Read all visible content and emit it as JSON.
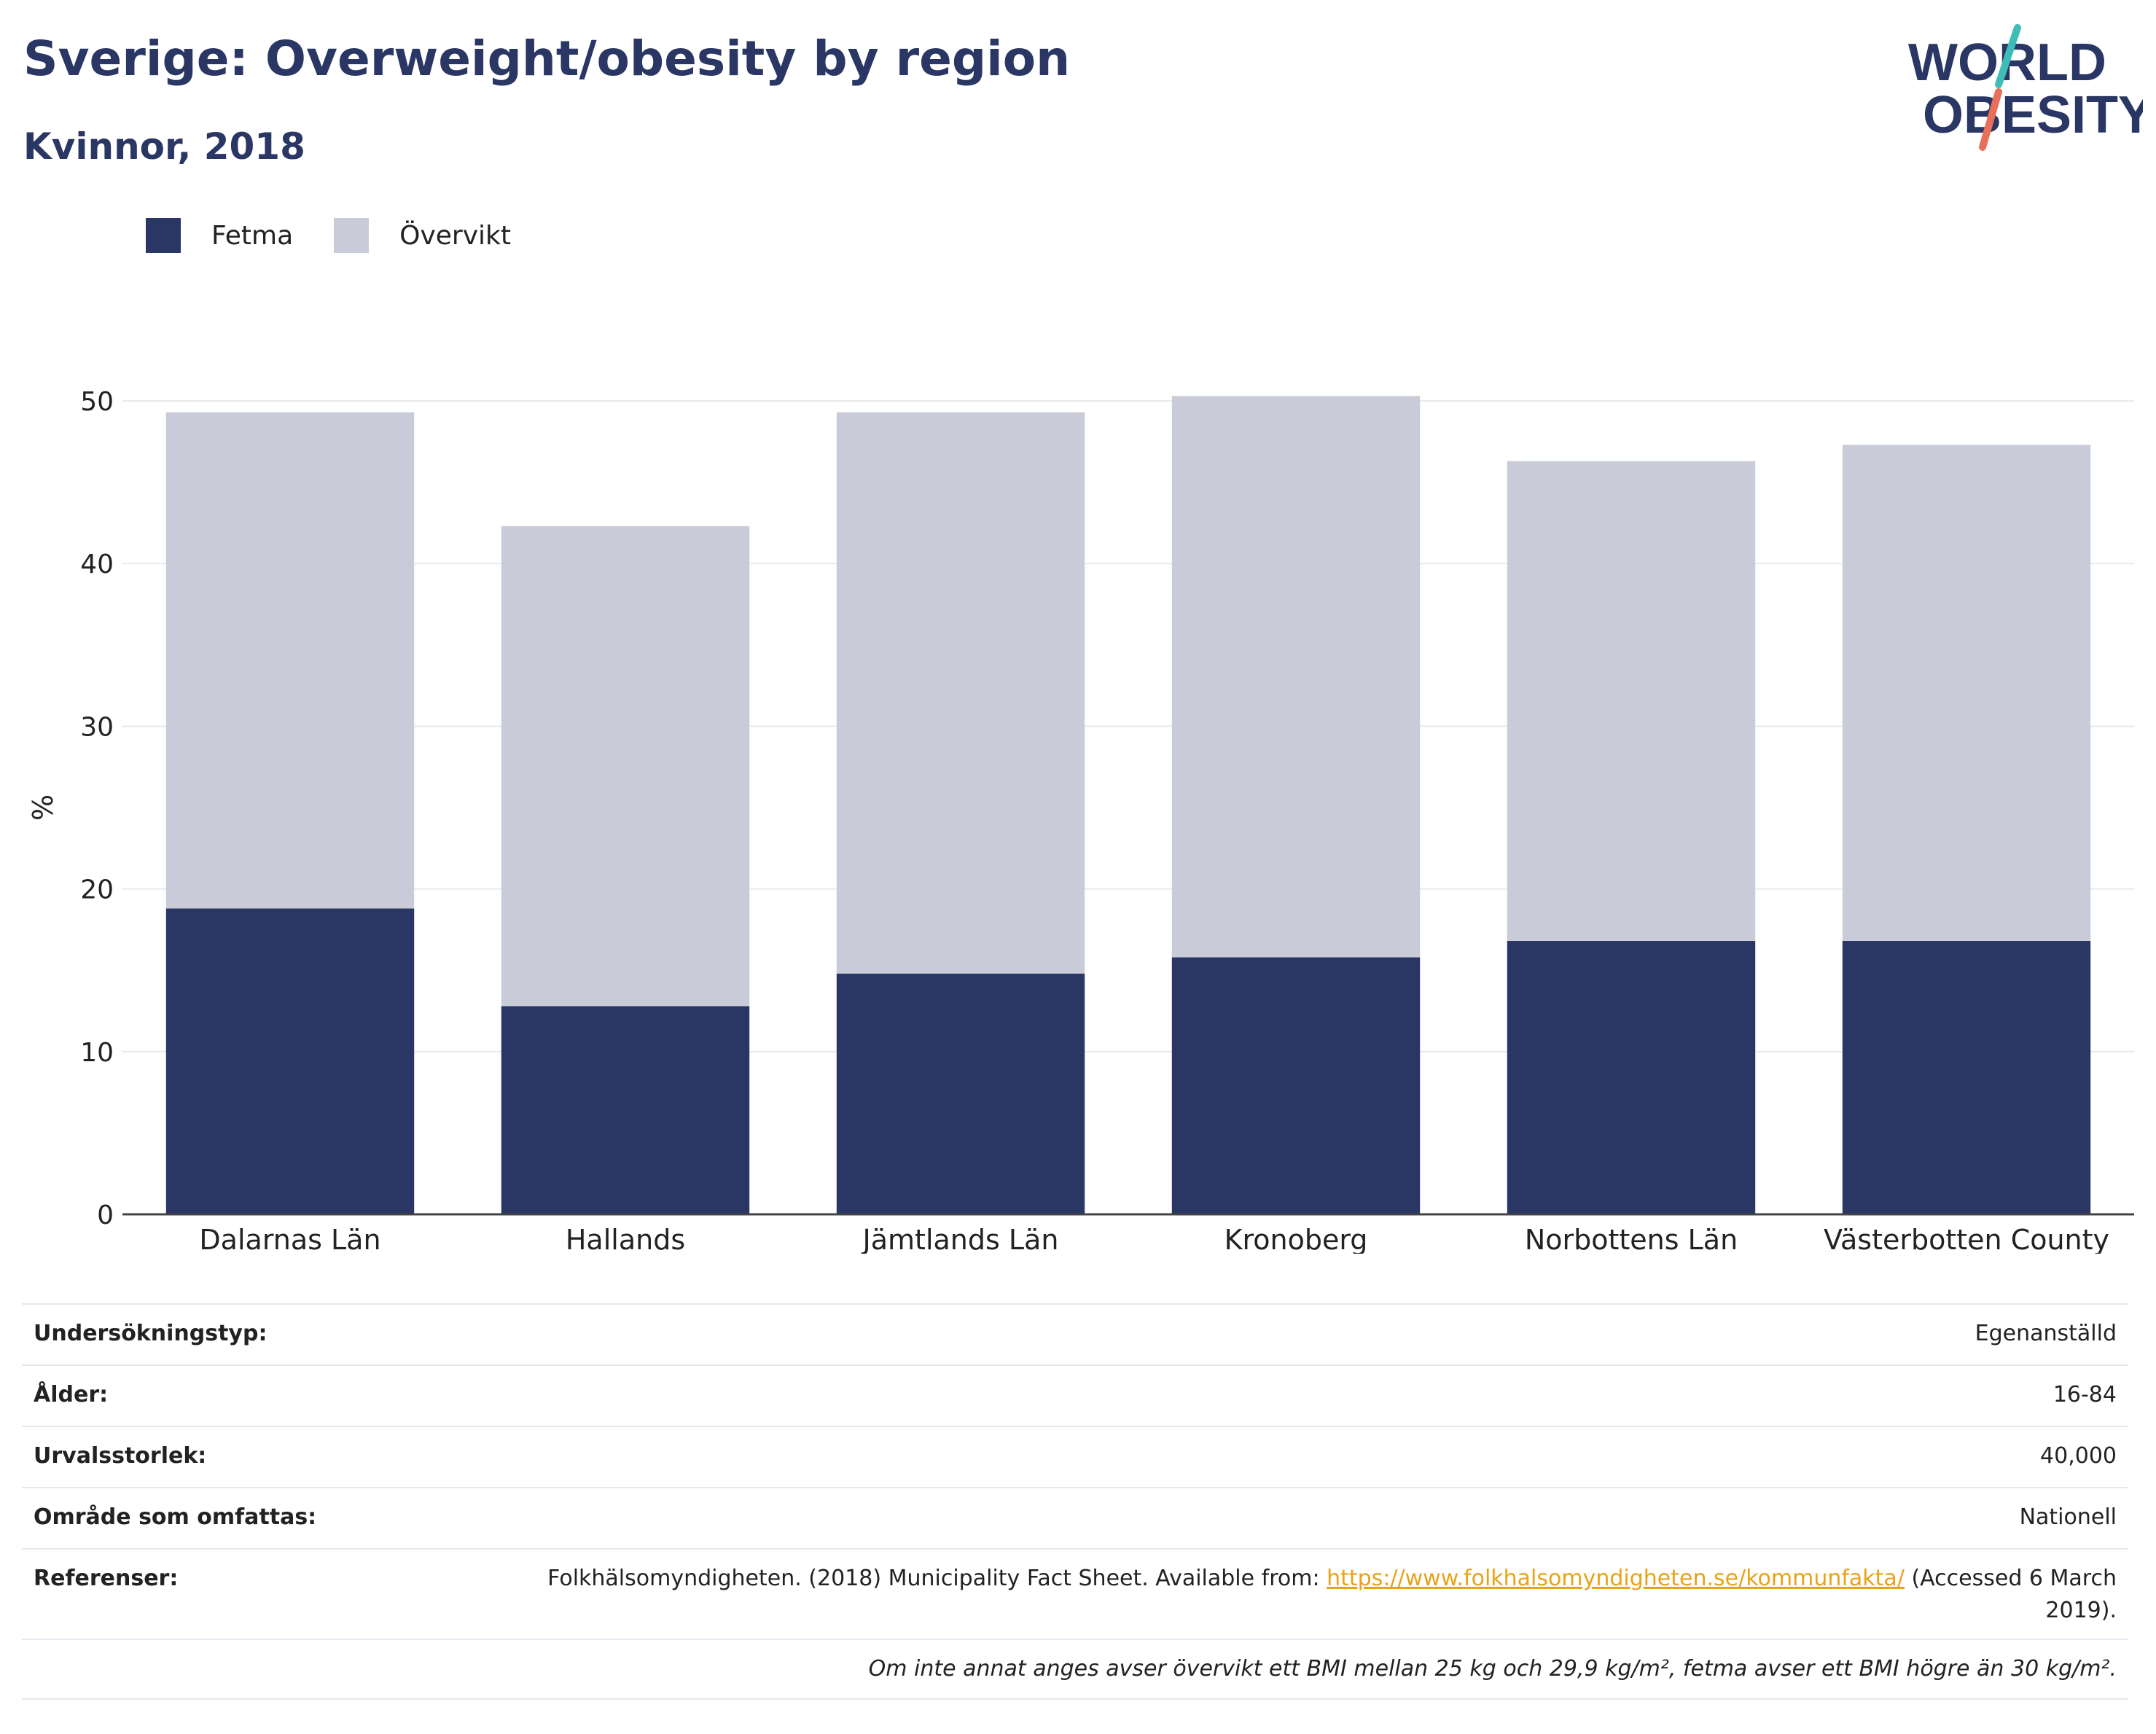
{
  "header": {
    "title": "Sverige: Overweight/obesity by region",
    "subtitle": "Kvinnor, 2018",
    "logo_line1": "WORLD",
    "logo_line2": "OBESITY"
  },
  "colors": {
    "fetma": "#2a3663",
    "overvikt": "#c9ccd8",
    "title": "#2a3663",
    "link": "#e8a317",
    "logo_teal": "#3dbcb8",
    "logo_coral": "#e8705a"
  },
  "legend": [
    {
      "label": "Fetma",
      "color": "#2a3663"
    },
    {
      "label": "Övervikt",
      "color": "#c9ccd8"
    }
  ],
  "chart_data": {
    "type": "bar",
    "stacked": true,
    "categories": [
      "Dalarnas Län",
      "Hallands",
      "Jämtlands Län",
      "Kronoberg",
      "Norbottens Län",
      "Västerbotten County"
    ],
    "series": [
      {
        "name": "Fetma",
        "values": [
          18.8,
          12.8,
          14.8,
          15.8,
          16.8,
          16.8
        ]
      },
      {
        "name": "Övervikt",
        "values": [
          30.5,
          29.5,
          34.5,
          34.5,
          29.5,
          30.5
        ]
      }
    ],
    "ylabel": "%",
    "ylim": [
      0,
      50
    ],
    "yticks": [
      "0",
      "10",
      "20",
      "30",
      "40",
      "50"
    ],
    "grid": true,
    "legend_position": "top-left"
  },
  "info": {
    "survey_type_label": "Undersökningstyp:",
    "survey_type_value": "Egenanställd",
    "age_label": "Ålder:",
    "age_value": "16-84",
    "sample_label": "Urvalsstorlek:",
    "sample_value": "40,000",
    "area_label": "Område som omfattas:",
    "area_value": "Nationell",
    "ref_label": "Referenser:",
    "ref_text": "Folkhälsomyndigheten. (2018) Municipality Fact Sheet. Available from: ",
    "ref_link": "https://www.folkhalsomyndigheten.se/kommunfakta/",
    "ref_after": " (Accessed 6 March 2019).",
    "note": "Om inte annat anges avser övervikt ett BMI mellan 25 kg och 29,9 kg/m², fetma avser ett BMI högre än 30 kg/m²."
  }
}
